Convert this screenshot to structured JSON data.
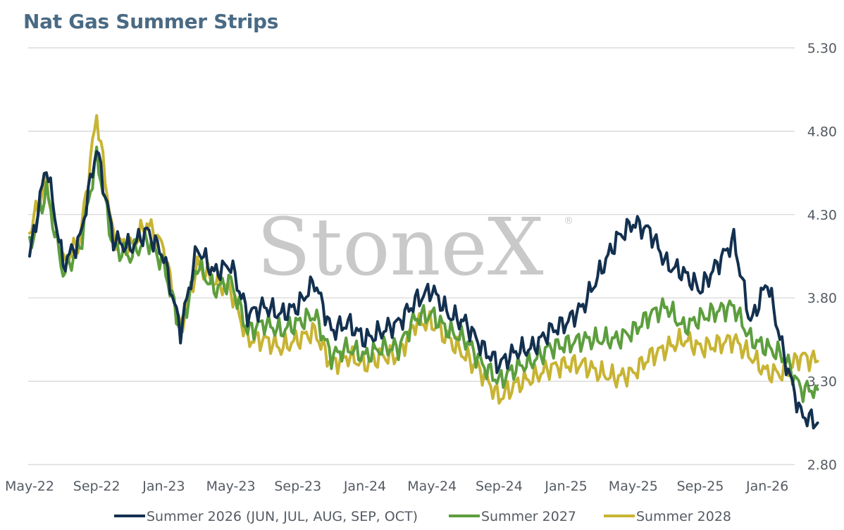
{
  "title": "Nat Gas Summer Strips",
  "watermark": "StoneX",
  "watermark_mark": "®",
  "chart_data": {
    "type": "line",
    "title": "Nat Gas Summer Strips",
    "xlabel": "",
    "ylabel": "",
    "ylim": [
      2.8,
      5.3
    ],
    "y_ticks": [
      "5.30",
      "4.80",
      "4.30",
      "3.80",
      "3.30",
      "2.80"
    ],
    "x_ticks": [
      "May-22",
      "Sep-22",
      "Jan-23",
      "May-23",
      "Sep-23",
      "Jan-24",
      "May-24",
      "Sep-24",
      "Jan-25",
      "May-25",
      "Sep-25",
      "Jan-26"
    ],
    "x": [
      "2022-05",
      "2022-06",
      "2022-07",
      "2022-08",
      "2022-09",
      "2022-10",
      "2022-11",
      "2022-12",
      "2023-01",
      "2023-02",
      "2023-03",
      "2023-04",
      "2023-05",
      "2023-06",
      "2023-07",
      "2023-08",
      "2023-09",
      "2023-10",
      "2023-11",
      "2023-12",
      "2024-01",
      "2024-02",
      "2024-03",
      "2024-04",
      "2024-05",
      "2024-06",
      "2024-07",
      "2024-08",
      "2024-09",
      "2024-10",
      "2024-11",
      "2024-12",
      "2025-01",
      "2025-02",
      "2025-03",
      "2025-04",
      "2025-05",
      "2025-06",
      "2025-07",
      "2025-08",
      "2025-09",
      "2025-10",
      "2025-11",
      "2025-12",
      "2026-01",
      "2026-02",
      "2026-03",
      "2026-04"
    ],
    "grid": true,
    "legend": "bottom",
    "series": [
      {
        "name": "Summer 2026 (JUN, JUL, AUG, SEP, OCT)",
        "color": "#13304f",
        "values": [
          4.05,
          4.6,
          4.0,
          4.15,
          4.7,
          4.15,
          4.1,
          4.2,
          4.05,
          3.6,
          4.1,
          3.95,
          4.0,
          3.7,
          3.75,
          3.7,
          3.75,
          3.9,
          3.6,
          3.65,
          3.55,
          3.6,
          3.65,
          3.78,
          3.85,
          3.7,
          3.65,
          3.5,
          3.4,
          3.48,
          3.5,
          3.6,
          3.65,
          3.75,
          3.95,
          4.15,
          4.25,
          4.2,
          4.0,
          3.95,
          3.85,
          4.0,
          4.15,
          3.65,
          3.9,
          3.45,
          3.1,
          3.05
        ]
      },
      {
        "name": "Summer 2027",
        "color": "#5c9e3d",
        "values": [
          4.1,
          4.45,
          3.95,
          4.1,
          4.65,
          4.1,
          4.05,
          4.15,
          4.0,
          3.6,
          4.0,
          3.85,
          3.9,
          3.6,
          3.65,
          3.6,
          3.65,
          3.7,
          3.45,
          3.5,
          3.45,
          3.5,
          3.5,
          3.68,
          3.7,
          3.6,
          3.55,
          3.4,
          3.3,
          3.38,
          3.42,
          3.5,
          3.52,
          3.55,
          3.55,
          3.55,
          3.6,
          3.7,
          3.75,
          3.62,
          3.68,
          3.72,
          3.75,
          3.55,
          3.5,
          3.45,
          3.25,
          3.25
        ]
      },
      {
        "name": "Summer 2028",
        "color": "#c8b433",
        "values": [
          4.2,
          4.5,
          4.0,
          4.15,
          4.9,
          4.15,
          4.1,
          4.25,
          4.1,
          3.6,
          4.0,
          3.9,
          3.85,
          3.55,
          3.55,
          3.5,
          3.55,
          3.6,
          3.4,
          3.45,
          3.4,
          3.45,
          3.45,
          3.65,
          3.65,
          3.55,
          3.45,
          3.35,
          3.2,
          3.28,
          3.32,
          3.38,
          3.4,
          3.4,
          3.35,
          3.32,
          3.35,
          3.45,
          3.5,
          3.55,
          3.5,
          3.52,
          3.55,
          3.45,
          3.35,
          3.35,
          3.45,
          3.42
        ]
      }
    ]
  }
}
